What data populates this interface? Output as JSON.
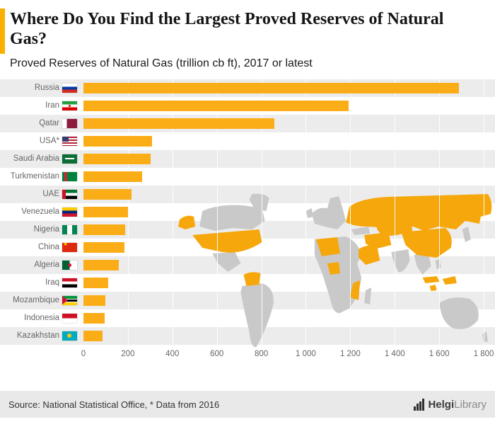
{
  "header": {
    "title": "Where Do You Find the Largest Proved Reserves of Natural Gas?",
    "subtitle": "Proved Reserves of Natural Gas (trillion cb ft), 2017 or latest"
  },
  "chart_data": {
    "type": "bar",
    "orientation": "horizontal",
    "title": "Where Do You Find the Largest Proved Reserves of Natural Gas?",
    "subtitle": "Proved Reserves of Natural Gas (trillion cb ft), 2017 or latest",
    "categories": [
      "Russia",
      "Iran",
      "Qatar",
      "USA*",
      "Saudi Arabia",
      "Turkmenistan",
      "UAE",
      "Venezuela",
      "Nigeria",
      "China",
      "Algeria",
      "Iraq",
      "Mozambique",
      "Indonesia",
      "Kazakhstan"
    ],
    "values": [
      1688,
      1191,
      858,
      309,
      303,
      265,
      215,
      201,
      187,
      184,
      159,
      112,
      100,
      96,
      85
    ],
    "flags": [
      "flag-ru",
      "flag-ir",
      "flag-qa",
      "flag-us",
      "flag-sa",
      "flag-tm",
      "flag-ae",
      "flag-ve",
      "flag-ng",
      "flag-cn",
      "flag-dz",
      "flag-iq",
      "flag-mz",
      "flag-id",
      "flag-kz"
    ],
    "xlim": [
      0,
      1800
    ],
    "x_ticks": [
      0,
      200,
      400,
      600,
      800,
      1000,
      1200,
      1400,
      1600,
      1800
    ],
    "x_tick_labels": [
      "0",
      "200",
      "400",
      "600",
      "800",
      "1 000",
      "1 200",
      "1 400",
      "1 600",
      "1 800"
    ],
    "bar_color": "#FBAD18",
    "grid": true,
    "legend": false,
    "background_decoration": "world-map with highlighted countries"
  },
  "colors": {
    "accent": "#F9B000",
    "bar": "#FBAD18",
    "stripe": "#ECECEC",
    "map_gray": "#C9C9C9",
    "map_highlight": "#F6A70B",
    "footer_bg": "#E9E9E9"
  },
  "footer": {
    "source": "Source: National Statistical Office, * Data from 2016",
    "logo": {
      "part1": "Helgi",
      "part2": "Library"
    }
  }
}
